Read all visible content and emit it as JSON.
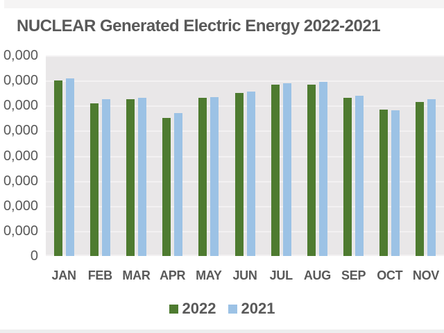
{
  "title": "NUCLEAR Generated Electric Energy 2022-2021",
  "colors": {
    "series_2022": "#4e7b30",
    "series_2021": "#9cc2e5",
    "plot_background": "#e9e7e8",
    "gridline": "#f3f1f2",
    "text": "#595959",
    "page_background": "#ffffff"
  },
  "chart_data": {
    "type": "bar",
    "title": "NUCLEAR Generated Electric Energy 2022-2021",
    "categories": [
      "JAN",
      "FEB",
      "MAR",
      "APR",
      "MAY",
      "JUN",
      "JUL",
      "AUG",
      "SEP",
      "OCT",
      "NOV"
    ],
    "series": [
      {
        "name": "2022",
        "color": "#4e7b30",
        "values": [
          70000,
          61000,
          62500,
          55000,
          63000,
          65000,
          68500,
          68500,
          63000,
          58500,
          61500
        ]
      },
      {
        "name": "2021",
        "color": "#9cc2e5",
        "values": [
          71000,
          62500,
          63000,
          57000,
          63500,
          65500,
          69000,
          69500,
          64000,
          58000,
          62500
        ]
      }
    ],
    "xlabel": "",
    "ylabel": "",
    "ylim": [
      0,
      80000
    ],
    "y_tick_step": 10000,
    "y_tick_labels_visible": [
      "0,000",
      "0,000",
      "0,000",
      "0,000",
      "0,000",
      "0,000",
      "0,000",
      "0,000",
      "0"
    ],
    "grid": "horizontal",
    "legend_position": "bottom"
  },
  "legend": {
    "items": [
      {
        "label": "2022",
        "color": "#4e7b30"
      },
      {
        "label": "2021",
        "color": "#9cc2e5"
      }
    ]
  }
}
